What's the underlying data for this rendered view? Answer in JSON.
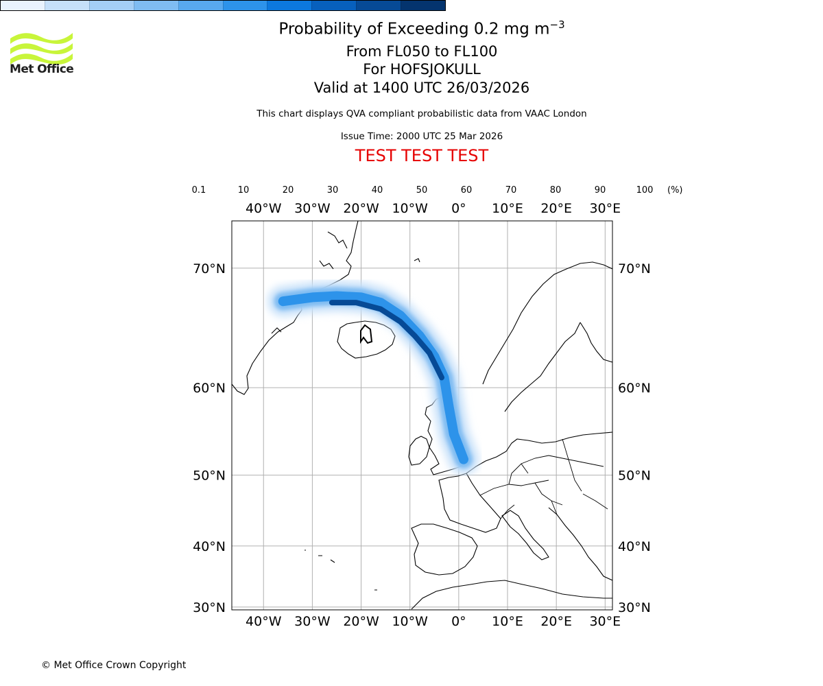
{
  "logo": {
    "name": "Met Office",
    "color": "#c8f53a"
  },
  "title": {
    "line1_prefix": "Probability of Exceeding 0.2 mg m",
    "line1_exponent": "−3",
    "line2": "From FL050 to FL100",
    "line3": "For HOFSJOKULL",
    "line4": "Valid at 1400 UTC 26/03/2026"
  },
  "subtitle": "This chart displays QVA compliant probabilistic data from VAAC London",
  "issue_time": "Issue Time: 2000 UTC 25 Mar 2026",
  "test_banner": "TEST TEST TEST",
  "colorbar": {
    "ticks": [
      "0.1",
      "10",
      "20",
      "30",
      "40",
      "50",
      "60",
      "70",
      "80",
      "90",
      "100"
    ],
    "unit": "(%)",
    "colors": [
      "#eaf3fd",
      "#c6e0f9",
      "#a4cef6",
      "#7fbcf2",
      "#58a9ef",
      "#2d93ea",
      "#0c78dd",
      "#0760bd",
      "#064a96",
      "#04346e"
    ]
  },
  "map": {
    "lon_labels": [
      "40°W",
      "30°W",
      "20°W",
      "10°W",
      "0°",
      "10°E",
      "20°E",
      "30°E"
    ],
    "lat_labels": [
      "70°N",
      "60°N",
      "50°N",
      "40°N",
      "30°N"
    ],
    "lon_values": [
      -40,
      -30,
      -20,
      -10,
      0,
      10,
      20,
      30
    ],
    "lat_values": [
      70,
      60,
      50,
      40,
      30
    ],
    "extent": {
      "lon_min": -46.5,
      "lon_max": 31.5,
      "lat_min": 29.5,
      "lat_max": 73
    },
    "grid_color": "#b0b0b0",
    "plume_path": [
      [
        -36,
        67.6
      ],
      [
        -30,
        67.9
      ],
      [
        -25,
        68.0
      ],
      [
        -20,
        67.9
      ],
      [
        -16,
        67.5
      ],
      [
        -12,
        66.5
      ],
      [
        -8,
        64.8
      ],
      [
        -5,
        63.0
      ],
      [
        -3,
        61.0
      ],
      [
        -2,
        58.0
      ],
      [
        -1,
        55.0
      ],
      [
        1,
        52.0
      ]
    ],
    "plume_core_path": [
      [
        -26,
        67.5
      ],
      [
        -21,
        67.5
      ],
      [
        -16,
        67.0
      ],
      [
        -12,
        66.0
      ],
      [
        -9,
        64.8
      ],
      [
        -6,
        63.3
      ],
      [
        -3.5,
        61.0
      ]
    ]
  },
  "copyright": "© Met Office Crown Copyright"
}
